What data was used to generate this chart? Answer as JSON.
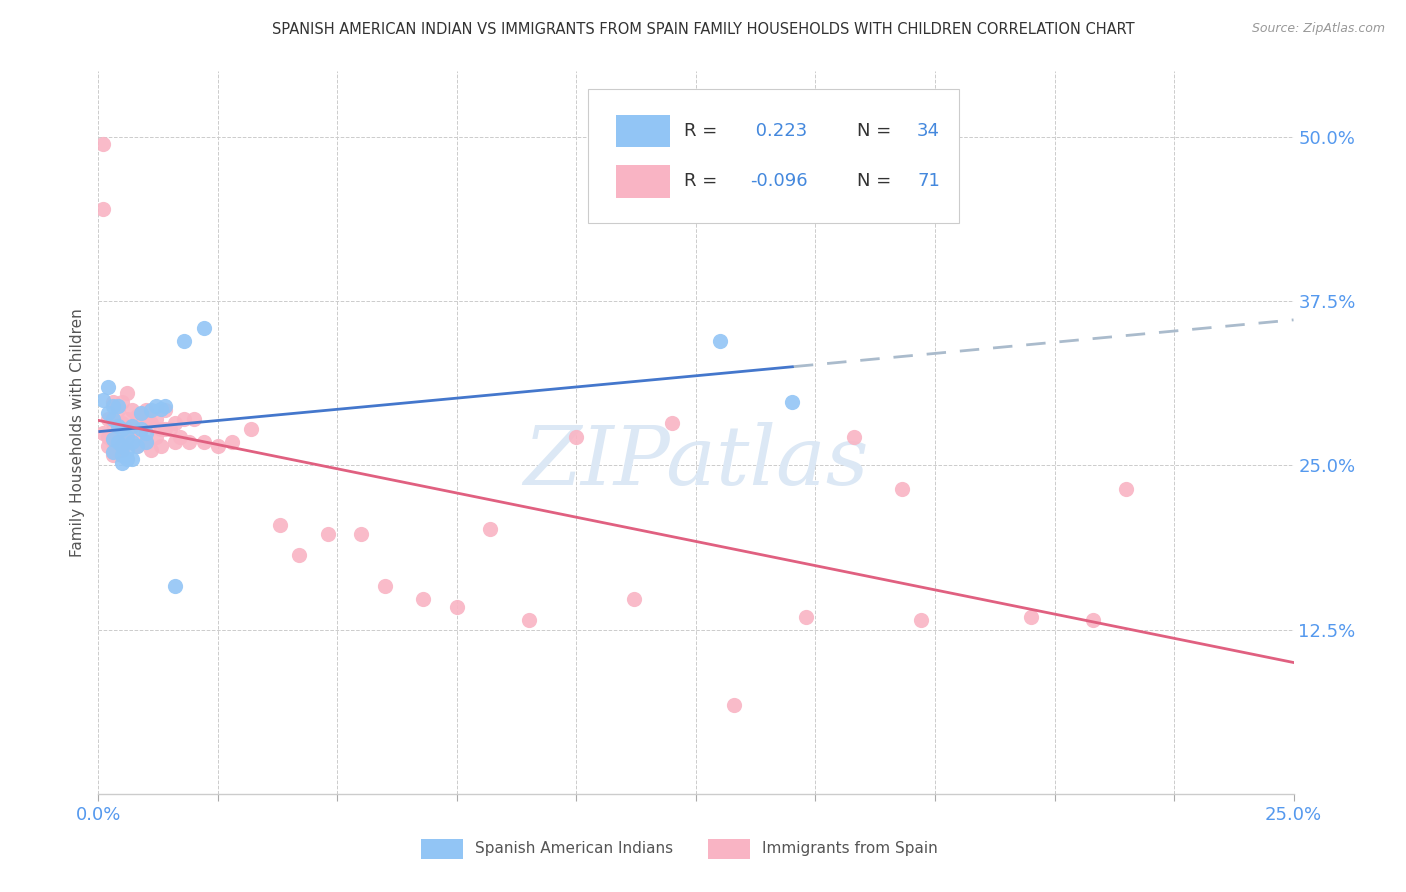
{
  "title": "SPANISH AMERICAN INDIAN VS IMMIGRANTS FROM SPAIN FAMILY HOUSEHOLDS WITH CHILDREN CORRELATION CHART",
  "source": "Source: ZipAtlas.com",
  "ylabel": "Family Households with Children",
  "xlim": [
    0.0,
    0.25
  ],
  "ylim": [
    0.0,
    0.55
  ],
  "xticks": [
    0.0,
    0.025,
    0.05,
    0.075,
    0.1,
    0.125,
    0.15,
    0.175,
    0.2,
    0.225,
    0.25
  ],
  "xticklabels_show": {
    "0.0": "0.0%",
    "0.25": "25.0%"
  },
  "yticks": [
    0.0,
    0.125,
    0.25,
    0.375,
    0.5
  ],
  "yticklabels": [
    "",
    "12.5%",
    "25.0%",
    "37.5%",
    "50.0%"
  ],
  "r1": 0.223,
  "n1": 34,
  "r2": -0.096,
  "n2": 71,
  "blue_color": "#92C5F5",
  "pink_color": "#F9B4C4",
  "trend_blue": "#4477CC",
  "trend_pink": "#E06080",
  "trend_gray": "#AABBCC",
  "watermark": "ZIPatlas",
  "watermark_color": "#DCE8F5",
  "blue_scatter_x": [
    0.001,
    0.002,
    0.002,
    0.003,
    0.003,
    0.003,
    0.003,
    0.004,
    0.004,
    0.004,
    0.005,
    0.005,
    0.005,
    0.005,
    0.006,
    0.006,
    0.006,
    0.007,
    0.007,
    0.007,
    0.008,
    0.009,
    0.009,
    0.01,
    0.01,
    0.011,
    0.012,
    0.013,
    0.014,
    0.016,
    0.018,
    0.022,
    0.13,
    0.145
  ],
  "blue_scatter_y": [
    0.3,
    0.31,
    0.29,
    0.295,
    0.285,
    0.27,
    0.26,
    0.295,
    0.28,
    0.268,
    0.278,
    0.265,
    0.258,
    0.252,
    0.272,
    0.262,
    0.255,
    0.28,
    0.268,
    0.255,
    0.265,
    0.29,
    0.278,
    0.275,
    0.268,
    0.292,
    0.295,
    0.293,
    0.295,
    0.158,
    0.345,
    0.355,
    0.345,
    0.298
  ],
  "pink_scatter_x": [
    0.001,
    0.001,
    0.001,
    0.002,
    0.002,
    0.002,
    0.003,
    0.003,
    0.003,
    0.003,
    0.004,
    0.004,
    0.004,
    0.004,
    0.005,
    0.005,
    0.005,
    0.005,
    0.006,
    0.006,
    0.006,
    0.007,
    0.007,
    0.007,
    0.008,
    0.008,
    0.008,
    0.009,
    0.009,
    0.01,
    0.01,
    0.01,
    0.011,
    0.011,
    0.012,
    0.012,
    0.013,
    0.013,
    0.014,
    0.014,
    0.015,
    0.016,
    0.016,
    0.017,
    0.018,
    0.019,
    0.02,
    0.022,
    0.025,
    0.028,
    0.032,
    0.038,
    0.042,
    0.048,
    0.055,
    0.06,
    0.068,
    0.075,
    0.082,
    0.09,
    0.1,
    0.112,
    0.12,
    0.133,
    0.148,
    0.158,
    0.168,
    0.172,
    0.195,
    0.208,
    0.215
  ],
  "pink_scatter_y": [
    0.495,
    0.445,
    0.275,
    0.285,
    0.272,
    0.265,
    0.298,
    0.282,
    0.268,
    0.258,
    0.292,
    0.282,
    0.272,
    0.262,
    0.298,
    0.282,
    0.272,
    0.262,
    0.305,
    0.285,
    0.278,
    0.292,
    0.278,
    0.268,
    0.288,
    0.275,
    0.265,
    0.282,
    0.272,
    0.292,
    0.285,
    0.268,
    0.282,
    0.262,
    0.285,
    0.272,
    0.278,
    0.265,
    0.292,
    0.278,
    0.278,
    0.282,
    0.268,
    0.272,
    0.285,
    0.268,
    0.285,
    0.268,
    0.265,
    0.268,
    0.278,
    0.205,
    0.182,
    0.198,
    0.198,
    0.158,
    0.148,
    0.142,
    0.202,
    0.132,
    0.272,
    0.148,
    0.282,
    0.068,
    0.135,
    0.272,
    0.232,
    0.132,
    0.135,
    0.132,
    0.232
  ]
}
